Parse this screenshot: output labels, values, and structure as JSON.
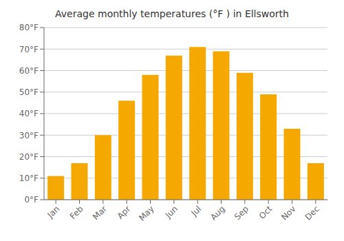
{
  "chart_data": {
    "type": "bar",
    "title": "Average monthly temperatures (°F ) in Ellsworth",
    "categories": [
      "Jan",
      "Feb",
      "Mar",
      "Apr",
      "May",
      "Jun",
      "Jul",
      "Aug",
      "Sep",
      "Oct",
      "Nov",
      "Dec"
    ],
    "values": [
      11,
      17,
      30,
      46,
      58,
      67,
      71,
      69,
      59,
      49,
      33,
      17
    ],
    "color": "#F5A800",
    "ylim": [
      0,
      80
    ],
    "yticks": [
      {
        "value": 0,
        "label": "0°F"
      },
      {
        "value": 10,
        "label": "10°F"
      },
      {
        "value": 20,
        "label": "20°F"
      },
      {
        "value": 30,
        "label": "30°F"
      },
      {
        "value": 40,
        "label": "40°F"
      },
      {
        "value": 50,
        "label": "50°F"
      },
      {
        "value": 60,
        "label": "60°F"
      },
      {
        "value": 70,
        "label": "70°F"
      },
      {
        "value": 80,
        "label": "80°F"
      }
    ],
    "grid": true
  }
}
